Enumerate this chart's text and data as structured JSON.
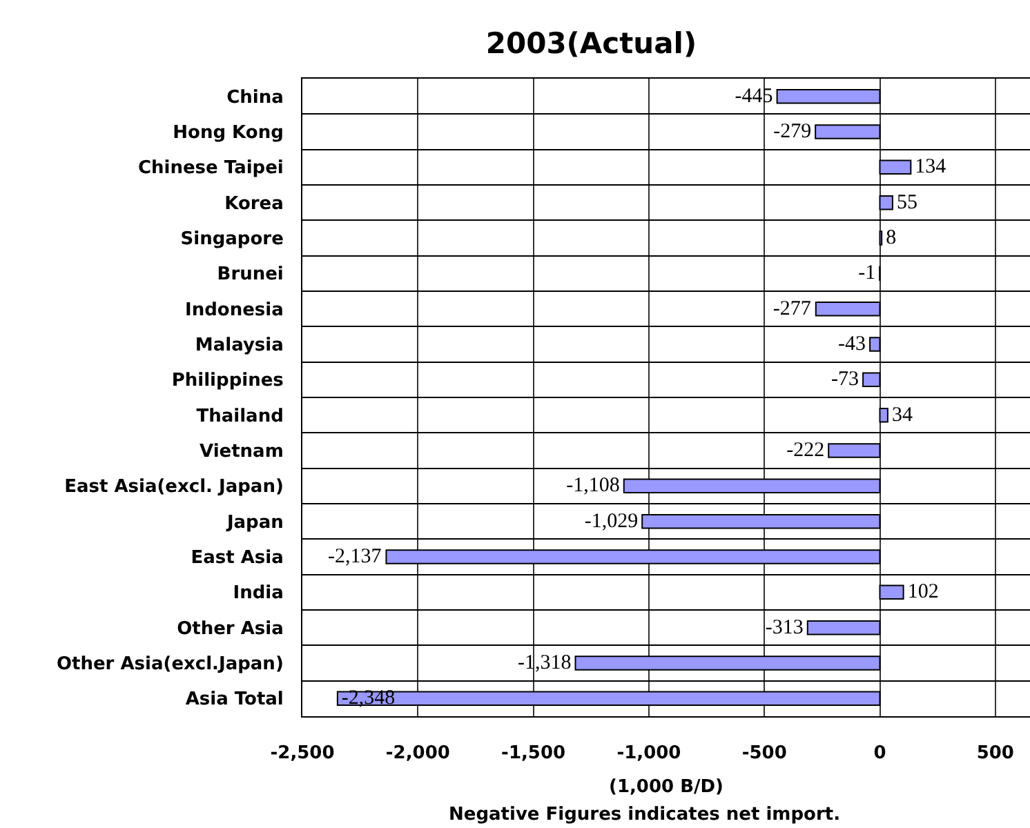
{
  "chart_data": {
    "type": "bar",
    "orientation": "horizontal",
    "title": "2003(Actual)",
    "xlabel": "(1,000 B/D)",
    "annotations": [
      "Negative Figures indicates net import."
    ],
    "categories": [
      "China",
      "Hong Kong",
      "Chinese Taipei",
      "Korea",
      "Singapore",
      "Brunei",
      "Indonesia",
      "Malaysia",
      "Philippines",
      "Thailand",
      "Vietnam",
      "East Asia(excl. Japan)",
      "Japan",
      "East Asia",
      "India",
      "Other Asia",
      "Other Asia(excl.Japan)",
      "Asia Total"
    ],
    "values": [
      -445,
      -279,
      134,
      55,
      8,
      -1,
      -277,
      -43,
      -73,
      34,
      -222,
      -1108,
      -1029,
      -2137,
      102,
      -313,
      -1318,
      -2348
    ],
    "value_labels": [
      "-445",
      "-279",
      "134",
      "55",
      "8",
      "-1",
      "-277",
      "-43",
      "-73",
      "34",
      "-222",
      "-1,108",
      "-1,029",
      "-2,137",
      "102",
      "-313",
      "-1,318",
      "-2,348"
    ],
    "color": "#9999ff",
    "xlim": [
      -2500,
      650
    ],
    "xticks": [
      {
        "value": -2500,
        "label": "-2,500"
      },
      {
        "value": -2000,
        "label": "-2,000"
      },
      {
        "value": -1500,
        "label": "-1,500"
      },
      {
        "value": -1000,
        "label": "-1,000"
      },
      -500,
      0,
      500
    ],
    "grid": true
  }
}
